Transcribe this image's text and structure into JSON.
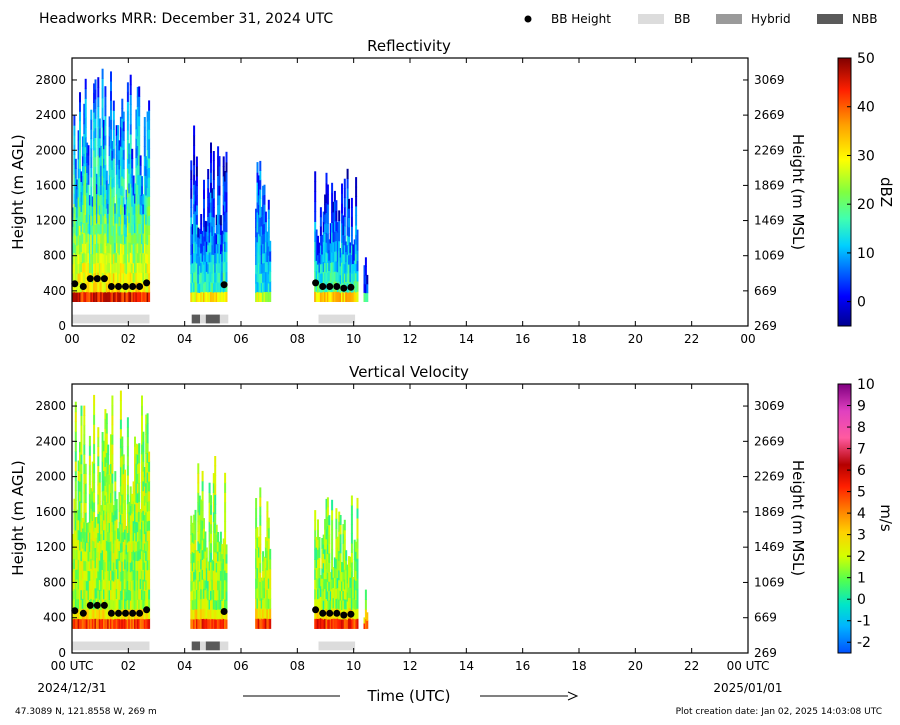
{
  "header": {
    "title": "Headworks MRR:  December 31, 2024 UTC",
    "legend": [
      {
        "label": "BB Height",
        "kind": "dot",
        "color": "#000000"
      },
      {
        "label": "BB",
        "kind": "rect",
        "color": "#dcdcdc"
      },
      {
        "label": "Hybrid",
        "kind": "rect",
        "color": "#9a9a9a"
      },
      {
        "label": "NBB",
        "kind": "rect",
        "color": "#5a5a5a"
      }
    ]
  },
  "footer": {
    "xlabel": "Time (UTC)",
    "start_date": "2024/12/31",
    "end_date": "2025/01/01",
    "location": "47.3089 N, 121.8558 W, 269 m",
    "creation": "Plot creation date: Jan 02, 2025 14:03:08 UTC"
  },
  "chart_data": [
    {
      "type": "heatmap",
      "title": "Reflectivity",
      "ylabel": "Height (m AGL)",
      "ylabel_right": "Height (m MSL)",
      "xlim": [
        0,
        24
      ],
      "ylim": [
        0,
        3050
      ],
      "x_ticks": [
        "00",
        "02",
        "04",
        "06",
        "08",
        "10",
        "12",
        "14",
        "16",
        "18",
        "20",
        "22",
        "00"
      ],
      "y_ticks": [
        0,
        400,
        800,
        1200,
        1600,
        2000,
        2400,
        2800
      ],
      "y_ticks_right": [
        269,
        669,
        1069,
        1469,
        1869,
        2269,
        2669,
        3069
      ],
      "colorbar": {
        "label": "dBZ",
        "min": -5,
        "max": 50,
        "ticks": [
          0,
          10,
          20,
          30,
          40,
          50
        ]
      },
      "bb_height": [
        [
          0.1,
          480
        ],
        [
          0.4,
          450
        ],
        [
          0.65,
          540
        ],
        [
          0.9,
          540
        ],
        [
          1.15,
          540
        ],
        [
          1.4,
          450
        ],
        [
          1.65,
          450
        ],
        [
          1.9,
          450
        ],
        [
          2.15,
          450
        ],
        [
          2.4,
          450
        ],
        [
          2.65,
          490
        ],
        [
          5.4,
          470
        ],
        [
          8.65,
          490
        ],
        [
          8.9,
          450
        ],
        [
          9.15,
          450
        ],
        [
          9.4,
          450
        ],
        [
          9.65,
          430
        ],
        [
          9.9,
          440
        ]
      ],
      "bb_types": [
        {
          "type": "BB",
          "start": 0.0,
          "end": 2.75
        },
        {
          "type": "NBB",
          "start": 4.25,
          "end": 4.55
        },
        {
          "type": "BB",
          "start": 4.55,
          "end": 4.75
        },
        {
          "type": "NBB",
          "start": 4.75,
          "end": 5.25
        },
        {
          "type": "BB",
          "start": 5.25,
          "end": 5.55
        },
        {
          "type": "BB",
          "start": 8.75,
          "end": 10.05
        }
      ]
    },
    {
      "type": "heatmap",
      "title": "Vertical Velocity",
      "ylabel": "Height (m AGL)",
      "ylabel_right": "Height (m MSL)",
      "xlim": [
        0,
        24
      ],
      "ylim": [
        0,
        3050
      ],
      "x_ticks": [
        "00 UTC",
        "02",
        "04",
        "06",
        "08",
        "10",
        "12",
        "14",
        "16",
        "18",
        "20",
        "22",
        "00 UTC"
      ],
      "y_ticks": [
        0,
        400,
        800,
        1200,
        1600,
        2000,
        2400,
        2800
      ],
      "y_ticks_right": [
        269,
        669,
        1069,
        1469,
        1869,
        2269,
        2669,
        3069
      ],
      "colorbar": {
        "label": "m/s",
        "min": -2.5,
        "max": 10,
        "ticks": [
          -2,
          -1,
          0,
          1,
          2,
          3,
          4,
          5,
          6,
          7,
          8,
          9,
          10
        ]
      },
      "bb_height": [
        [
          0.1,
          480
        ],
        [
          0.4,
          450
        ],
        [
          0.65,
          540
        ],
        [
          0.9,
          540
        ],
        [
          1.15,
          540
        ],
        [
          1.4,
          450
        ],
        [
          1.65,
          450
        ],
        [
          1.9,
          450
        ],
        [
          2.15,
          450
        ],
        [
          2.4,
          450
        ],
        [
          2.65,
          490
        ],
        [
          5.4,
          470
        ],
        [
          8.65,
          490
        ],
        [
          8.9,
          450
        ],
        [
          9.15,
          450
        ],
        [
          9.4,
          450
        ],
        [
          9.65,
          430
        ],
        [
          9.9,
          440
        ]
      ],
      "bb_types": [
        {
          "type": "BB",
          "start": 0.0,
          "end": 2.75
        },
        {
          "type": "NBB",
          "start": 4.25,
          "end": 4.55
        },
        {
          "type": "BB",
          "start": 4.55,
          "end": 4.75
        },
        {
          "type": "NBB",
          "start": 4.75,
          "end": 5.25
        },
        {
          "type": "BB",
          "start": 5.25,
          "end": 5.55
        },
        {
          "type": "BB",
          "start": 8.75,
          "end": 10.05
        }
      ]
    }
  ],
  "echo_segments": [
    {
      "start": 0.0,
      "end": 2.75,
      "top": 3000,
      "ref_base": 14,
      "ref_peak": 32,
      "vv_base": 1.5
    },
    {
      "start": 4.2,
      "end": 5.5,
      "top": 2300,
      "ref_base": 5,
      "ref_peak": 18,
      "vv_base": 1.4
    },
    {
      "start": 6.5,
      "end": 7.05,
      "top": 1900,
      "ref_base": 8,
      "ref_peak": 14,
      "vv_base": 1.6
    },
    {
      "start": 8.6,
      "end": 10.15,
      "top": 1800,
      "ref_base": 6,
      "ref_peak": 20,
      "vv_base": 1.3
    },
    {
      "start": 10.35,
      "end": 10.5,
      "top": 800,
      "ref_base": 2,
      "ref_peak": 6,
      "vv_base": 1.5
    }
  ]
}
